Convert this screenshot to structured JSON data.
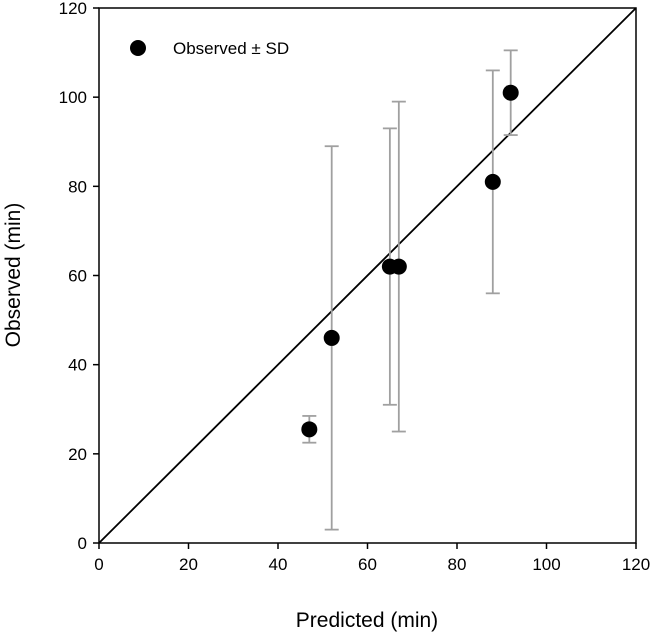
{
  "chart_data": {
    "type": "scatter",
    "title": "",
    "xlabel": "Predicted (min)",
    "ylabel": "Observed (min)",
    "xlim": [
      0,
      120
    ],
    "ylim": [
      0,
      120
    ],
    "xticks": [
      "0",
      "20",
      "40",
      "60",
      "80",
      "100",
      "120"
    ],
    "yticks": [
      "0",
      "20",
      "40",
      "60",
      "80",
      "100",
      "120"
    ],
    "grid": false,
    "legend": {
      "placement": "top-left",
      "label": "Observed ± SD"
    },
    "identity_line": {
      "from": [
        0,
        0
      ],
      "to": [
        120,
        120
      ]
    },
    "series": [
      {
        "name": "Observed ± SD",
        "points": [
          {
            "x": 47,
            "y": 25.5,
            "sd_low": 22.5,
            "sd_high": 28.5
          },
          {
            "x": 52,
            "y": 46,
            "sd_low": 3,
            "sd_high": 89
          },
          {
            "x": 65,
            "y": 62,
            "sd_low": 31,
            "sd_high": 93
          },
          {
            "x": 67,
            "y": 62,
            "sd_low": 25,
            "sd_high": 99
          },
          {
            "x": 88,
            "y": 81,
            "sd_low": 56,
            "sd_high": 106
          },
          {
            "x": 92,
            "y": 101,
            "sd_low": 91.5,
            "sd_high": 110.5
          }
        ]
      }
    ],
    "colors": {
      "marker": "#000000",
      "error_bar": "#a0a0a0",
      "line": "#000000",
      "axes": "#000000"
    }
  }
}
